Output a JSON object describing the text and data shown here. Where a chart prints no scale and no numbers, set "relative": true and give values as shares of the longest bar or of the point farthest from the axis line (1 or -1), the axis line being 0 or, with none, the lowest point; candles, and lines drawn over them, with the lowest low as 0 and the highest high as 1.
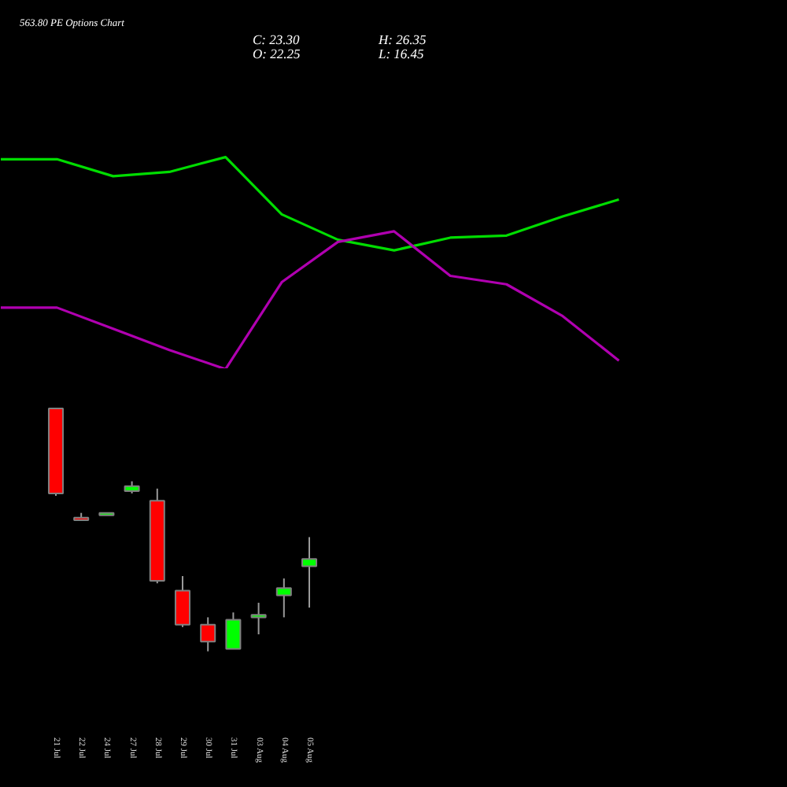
{
  "chart_data": [
    {
      "type": "line",
      "title": "563.80 PE Options Chart",
      "annotations": [
        "C: 23.30",
        "H: 26.35",
        "O: 22.25",
        "L: 16.45"
      ],
      "categories": [
        null,
        null,
        null,
        null,
        null,
        null,
        null,
        null,
        null,
        null,
        null,
        null
      ],
      "relative": true,
      "tick_labels": false,
      "series": [
        {
          "color": "#00dd00",
          "values": [
            0.99,
            0.99,
            0.91,
            0.93,
            1.0,
            0.73,
            0.61,
            0.56,
            0.62,
            0.63,
            0.72,
            0.8
          ]
        },
        {
          "color": "#b000b0",
          "values": [
            0.29,
            0.29,
            0.19,
            0.09,
            0.0,
            0.41,
            0.6,
            0.65,
            0.44,
            0.4,
            0.25,
            0.04
          ]
        }
      ]
    },
    {
      "type": "candlestick",
      "categories": [
        "21 Jul",
        "22 Jul",
        "24 Jul",
        "27 Jul",
        "28 Jul",
        "29 Jul",
        "30 Jul",
        "31 Jul",
        "03 Aug",
        "04 Aug",
        "05 Aug"
      ],
      "ohlc": [
        [
          1.0,
          1.0,
          0.64,
          0.65
        ],
        [
          0.55,
          0.57,
          0.54,
          0.54
        ],
        [
          0.56,
          0.57,
          0.56,
          0.57
        ],
        [
          0.66,
          0.7,
          0.65,
          0.68
        ],
        [
          0.62,
          0.67,
          0.28,
          0.29
        ],
        [
          0.25,
          0.31,
          0.1,
          0.11
        ],
        [
          0.11,
          0.14,
          0.0,
          0.04
        ],
        [
          0.01,
          0.16,
          0.01,
          0.13
        ],
        [
          0.14,
          0.2,
          0.07,
          0.15
        ],
        [
          0.23,
          0.3,
          0.14,
          0.26
        ],
        [
          0.35,
          0.47,
          0.18,
          0.38
        ]
      ],
      "colors": [
        "#ff0000",
        "#ff0000",
        "#00ff00",
        "#00ff00",
        "#ff0000",
        "#ff0000",
        "#ff0000",
        "#00ff00",
        "#00ff00",
        "#00ff00",
        "#00ff00"
      ],
      "relative": true,
      "tick_labels": "x"
    }
  ]
}
